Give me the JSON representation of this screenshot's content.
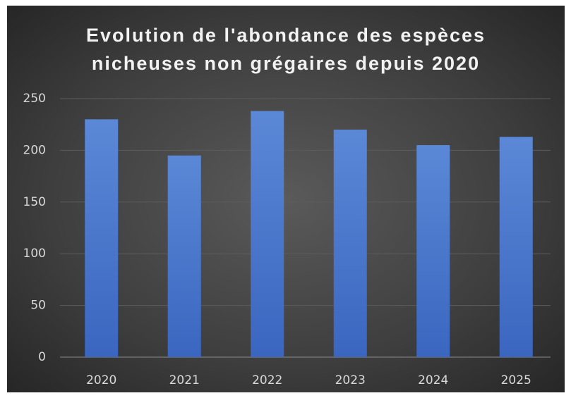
{
  "chart_data": {
    "type": "bar",
    "title": "Evolution de l'abondance des espèces\nnicheuses non grégaires depuis 2020",
    "categories": [
      "2020",
      "2021",
      "2022",
      "2023",
      "2024",
      "2025"
    ],
    "values": [
      230,
      195,
      238,
      220,
      205,
      213
    ],
    "color": "#4a78cc",
    "ylim": [
      0,
      250
    ],
    "yticks": [
      0,
      50,
      100,
      150,
      200,
      250
    ],
    "grid": true
  }
}
